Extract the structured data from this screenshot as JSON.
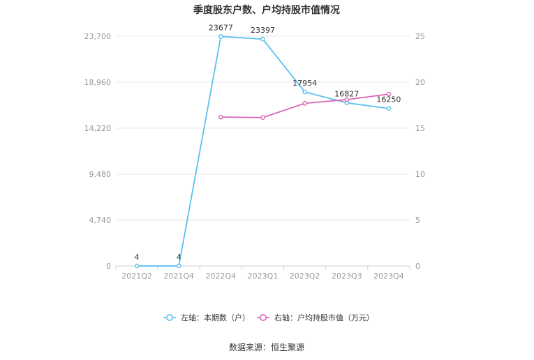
{
  "chart_data": {
    "type": "line",
    "title": "季度股东户数、户均持股市值情况",
    "categories": [
      "2021Q2",
      "2021Q4",
      "2022Q4",
      "2023Q1",
      "2023Q2",
      "2023Q3",
      "2023Q4"
    ],
    "left_axis": {
      "ylim": [
        0,
        23700
      ],
      "ticks": [
        "0",
        "4,740",
        "9,480",
        "14,220",
        "18,960",
        "23,700"
      ]
    },
    "right_axis": {
      "ylim": [
        0,
        25
      ],
      "ticks": [
        "0",
        "5",
        "10",
        "15",
        "20",
        "25"
      ]
    },
    "series": [
      {
        "name": "左轴：本期数（户）",
        "axis": "left",
        "color": "#5bc0f0",
        "values": [
          4,
          4,
          23677,
          23397,
          17954,
          16827,
          16250
        ],
        "labels": [
          "4",
          "4",
          "23677",
          "23397",
          "17954",
          "16827",
          "16250"
        ]
      },
      {
        "name": "右轴：户均持股市值（万元）",
        "axis": "right",
        "color": "#d966b3",
        "values": [
          null,
          null,
          16.2,
          16.15,
          17.7,
          18.1,
          18.7
        ]
      }
    ],
    "grid": true,
    "legend": "bottom"
  },
  "source": "数据来源：恒生聚源"
}
